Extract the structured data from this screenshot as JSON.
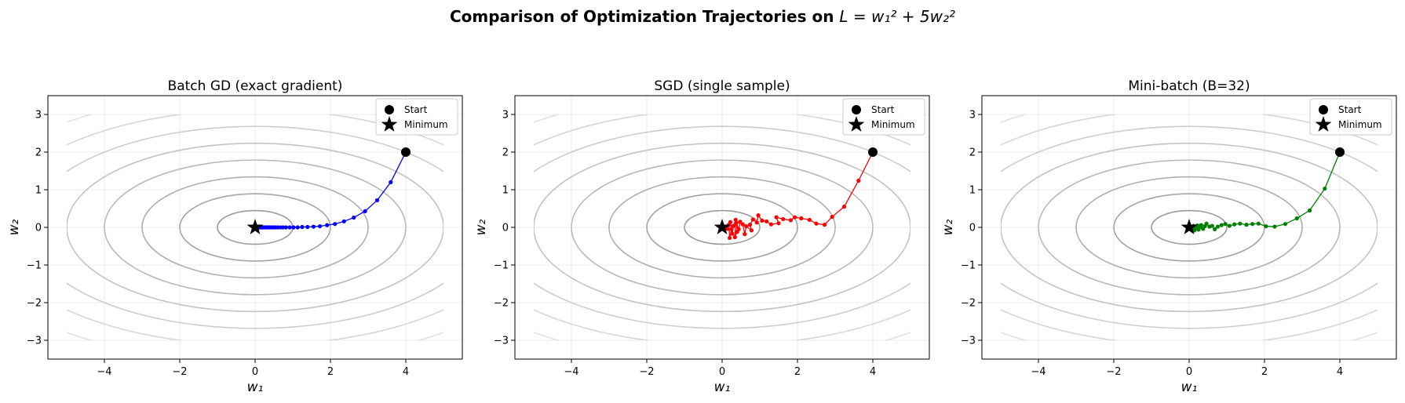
{
  "figure": {
    "title_prefix": "Comparison of Optimization Trajectories on ",
    "title_math": "L = w₁² + 5w₂²"
  },
  "chart_data": [
    {
      "type": "line",
      "title": "Batch GD (exact gradient)",
      "xlabel": "w₁",
      "ylabel": "w₂",
      "xlim": [
        -5.5,
        5.5
      ],
      "ylim": [
        -3.5,
        3.5
      ],
      "xticks": [
        -4,
        -2,
        0,
        2,
        4
      ],
      "yticks": [
        -3,
        -2,
        -1,
        0,
        1,
        2,
        3
      ],
      "xtick_labels": [
        "−4",
        "−2",
        "0",
        "2",
        "4"
      ],
      "ytick_labels": [
        "−3",
        "−2",
        "−1",
        "0",
        "1",
        "2",
        "3"
      ],
      "grid": true,
      "legend_position": "top-right",
      "color": "#0000ff",
      "contour_levels": [
        1,
        4,
        9,
        16,
        25,
        36,
        49,
        64,
        81
      ],
      "start": {
        "label": "Start",
        "x": 4,
        "y": 2
      },
      "minimum": {
        "label": "Minimum",
        "x": 0,
        "y": 0
      },
      "trajectory": [
        [
          4.0,
          2.0
        ],
        [
          3.6,
          1.2
        ],
        [
          3.24,
          0.72
        ],
        [
          2.92,
          0.43
        ],
        [
          2.62,
          0.26
        ],
        [
          2.36,
          0.16
        ],
        [
          2.12,
          0.09
        ],
        [
          1.91,
          0.06
        ],
        [
          1.72,
          0.03
        ],
        [
          1.55,
          0.02
        ],
        [
          1.39,
          0.01
        ],
        [
          1.25,
          0.01
        ],
        [
          1.13,
          0.0
        ],
        [
          1.02,
          0.0
        ],
        [
          0.92,
          0.0
        ],
        [
          0.82,
          0.0
        ],
        [
          0.74,
          0.0
        ],
        [
          0.67,
          0.0
        ],
        [
          0.6,
          0.0
        ],
        [
          0.54,
          0.0
        ],
        [
          0.49,
          0.0
        ],
        [
          0.44,
          0.0
        ],
        [
          0.39,
          0.0
        ],
        [
          0.35,
          0.0
        ],
        [
          0.32,
          0.0
        ],
        [
          0.29,
          0.0
        ],
        [
          0.26,
          0.0
        ],
        [
          0.23,
          0.0
        ],
        [
          0.21,
          0.0
        ],
        [
          0.19,
          0.0
        ],
        [
          0.17,
          0.0
        ],
        [
          0.15,
          0.0
        ],
        [
          0.14,
          0.0
        ],
        [
          0.12,
          0.0
        ],
        [
          0.11,
          0.0
        ],
        [
          0.1,
          0.0
        ],
        [
          0.09,
          0.0
        ],
        [
          0.08,
          0.0
        ],
        [
          0.07,
          0.0
        ],
        [
          0.06,
          0.0
        ],
        [
          0.05,
          0.0
        ]
      ]
    },
    {
      "type": "line",
      "title": "SGD (single sample)",
      "xlabel": "w₁",
      "ylabel": "w₂",
      "xlim": [
        -5.5,
        5.5
      ],
      "ylim": [
        -3.5,
        3.5
      ],
      "xticks": [
        -4,
        -2,
        0,
        2,
        4
      ],
      "yticks": [
        -3,
        -2,
        -1,
        0,
        1,
        2,
        3
      ],
      "xtick_labels": [
        "−4",
        "−2",
        "0",
        "2",
        "4"
      ],
      "ytick_labels": [
        "−3",
        "−2",
        "−1",
        "0",
        "1",
        "2",
        "3"
      ],
      "grid": true,
      "legend_position": "top-right",
      "color": "#ff0000",
      "contour_levels": [
        1,
        4,
        9,
        16,
        25,
        36,
        49,
        64,
        81
      ],
      "start": {
        "label": "Start",
        "x": 4,
        "y": 2
      },
      "minimum": {
        "label": "Minimum",
        "x": 0,
        "y": 0
      },
      "trajectory": [
        [
          4.0,
          2.0
        ],
        [
          3.62,
          1.24
        ],
        [
          3.24,
          0.55
        ],
        [
          2.92,
          0.28
        ],
        [
          2.72,
          0.07
        ],
        [
          2.5,
          0.1
        ],
        [
          2.32,
          0.2
        ],
        [
          2.1,
          0.24
        ],
        [
          1.93,
          0.27
        ],
        [
          1.82,
          0.19
        ],
        [
          1.62,
          0.22
        ],
        [
          1.44,
          0.27
        ],
        [
          1.5,
          0.11
        ],
        [
          1.3,
          0.08
        ],
        [
          1.18,
          0.16
        ],
        [
          1.06,
          0.18
        ],
        [
          0.96,
          0.32
        ],
        [
          0.92,
          0.13
        ],
        [
          0.82,
          0.21
        ],
        [
          0.74,
          0.07
        ],
        [
          0.78,
          -0.08
        ],
        [
          0.64,
          0.03
        ],
        [
          0.6,
          -0.18
        ],
        [
          0.55,
          0.08
        ],
        [
          0.48,
          0.15
        ],
        [
          0.44,
          -0.05
        ],
        [
          0.38,
          0.12
        ],
        [
          0.4,
          -0.12
        ],
        [
          0.34,
          -0.26
        ],
        [
          0.36,
          0.2
        ],
        [
          0.3,
          0.04
        ],
        [
          0.27,
          -0.17
        ],
        [
          0.22,
          0.14
        ],
        [
          0.25,
          -0.05
        ],
        [
          0.2,
          -0.28
        ],
        [
          0.18,
          0.07
        ],
        [
          0.14,
          -0.04
        ],
        [
          0.1,
          0.02
        ],
        [
          0.08,
          0.0
        ],
        [
          0.06,
          0.02
        ],
        [
          0.05,
          0.0
        ]
      ]
    },
    {
      "type": "line",
      "title": "Mini-batch (B=32)",
      "xlabel": "w₁",
      "ylabel": "w₂",
      "xlim": [
        -5.5,
        5.5
      ],
      "ylim": [
        -3.5,
        3.5
      ],
      "xticks": [
        -4,
        -2,
        0,
        2,
        4
      ],
      "yticks": [
        -3,
        -2,
        -1,
        0,
        1,
        2,
        3
      ],
      "xtick_labels": [
        "−4",
        "−2",
        "0",
        "2",
        "4"
      ],
      "ytick_labels": [
        "−3",
        "−2",
        "−1",
        "0",
        "1",
        "2",
        "3"
      ],
      "grid": true,
      "legend_position": "top-right",
      "color": "#008000",
      "contour_levels": [
        1,
        4,
        9,
        16,
        25,
        36,
        49,
        64,
        81
      ],
      "start": {
        "label": "Start",
        "x": 4,
        "y": 2
      },
      "minimum": {
        "label": "Minimum",
        "x": 0,
        "y": 0
      },
      "trajectory": [
        [
          4.0,
          2.0
        ],
        [
          3.6,
          1.03
        ],
        [
          3.2,
          0.45
        ],
        [
          2.86,
          0.24
        ],
        [
          2.55,
          0.09
        ],
        [
          2.27,
          0.02
        ],
        [
          2.04,
          0.03
        ],
        [
          1.84,
          0.1
        ],
        [
          1.68,
          0.09
        ],
        [
          1.52,
          0.07
        ],
        [
          1.35,
          0.1
        ],
        [
          1.2,
          0.08
        ],
        [
          1.07,
          0.04
        ],
        [
          0.96,
          0.09
        ],
        [
          0.86,
          0.06
        ],
        [
          0.76,
          0.02
        ],
        [
          0.68,
          -0.05
        ],
        [
          0.61,
          0.04
        ],
        [
          0.54,
          0.02
        ],
        [
          0.46,
          0.1
        ],
        [
          0.42,
          0.03
        ],
        [
          0.37,
          -0.04
        ],
        [
          0.32,
          0.06
        ],
        [
          0.29,
          0.01
        ],
        [
          0.25,
          -0.06
        ],
        [
          0.22,
          0.05
        ],
        [
          0.2,
          -0.03
        ],
        [
          0.17,
          0.02
        ],
        [
          0.14,
          -0.08
        ],
        [
          0.12,
          0.04
        ],
        [
          0.1,
          -0.02
        ],
        [
          0.08,
          0.01
        ],
        [
          0.06,
          -0.01
        ],
        [
          0.04,
          0.0
        ]
      ]
    }
  ]
}
